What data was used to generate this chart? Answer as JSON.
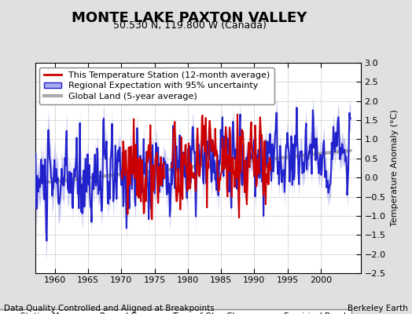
{
  "title": "MONTE LAKE PAXTON VALLEY",
  "subtitle": "50.530 N, 119.800 W (Canada)",
  "ylabel": "Temperature Anomaly (°C)",
  "footer_left": "Data Quality Controlled and Aligned at Breakpoints",
  "footer_right": "Berkeley Earth",
  "xlim": [
    1957,
    2006
  ],
  "ylim": [
    -2.5,
    3.0
  ],
  "yticks": [
    -2.5,
    -2,
    -1.5,
    -1,
    -0.5,
    0,
    0.5,
    1,
    1.5,
    2,
    2.5,
    3
  ],
  "xticks": [
    1960,
    1965,
    1970,
    1975,
    1980,
    1985,
    1990,
    1995,
    2000
  ],
  "background_color": "#e0e0e0",
  "plot_bg_color": "#ffffff",
  "regional_color": "#2222cc",
  "regional_fill_color": "#aaaaee",
  "station_color": "#cc0000",
  "global_color": "#aaaaaa",
  "global_lw": 3,
  "regional_lw": 1.5,
  "station_lw": 1.5,
  "title_fontsize": 13,
  "subtitle_fontsize": 9,
  "legend_fontsize": 8,
  "tick_fontsize": 8,
  "footer_fontsize": 7.5
}
